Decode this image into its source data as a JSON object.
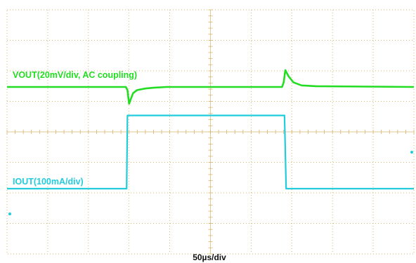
{
  "chart_data": {
    "type": "line",
    "title": "",
    "xlabel": "50µs/div",
    "ylabel": "",
    "x_unit": "µs",
    "x_per_div": 50,
    "x_divisions": 10,
    "y_divisions": 8,
    "xlim": [
      0,
      500
    ],
    "grid": true,
    "series": [
      {
        "name": "VOUT(20mV/div, AC coupling)",
        "color": "#22dd22",
        "y_unit": "mV",
        "y_per_div": 20,
        "ground_marker": false,
        "x": [
          0,
          146,
          148,
          150,
          152,
          155,
          160,
          170,
          180,
          196,
          320,
          338,
          340,
          342,
          346,
          352,
          362,
          380,
          500
        ],
        "y": [
          0,
          0,
          -2,
          -11,
          -8,
          -4,
          -2,
          -1,
          -0.5,
          0,
          0,
          0,
          3,
          11,
          7,
          3,
          1,
          0.5,
          0
        ]
      },
      {
        "name": "IOUT(100mA/div)",
        "color": "#22ccdd",
        "y_unit": "mA",
        "y_per_div": 100,
        "ground_marker": true,
        "x": [
          0,
          147,
          148,
          341,
          343,
          500
        ],
        "y": [
          0,
          0,
          240,
          240,
          0,
          0
        ]
      }
    ]
  }
}
